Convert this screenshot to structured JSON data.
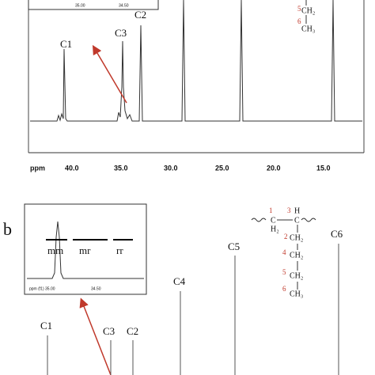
{
  "panel_a": {
    "inset_ticks": [
      "35.00",
      "34.50"
    ],
    "peak_labels": [
      "C1",
      "C3",
      "C2"
    ],
    "x_axis": {
      "unit": "ppm",
      "ticks": [
        "40.0",
        "35.0",
        "30.0",
        "25.0",
        "20.0",
        "15.0"
      ]
    },
    "structure": {
      "numbers": [
        "5",
        "6"
      ],
      "groups": [
        "CH₂",
        "CH₃"
      ]
    }
  },
  "panel_b": {
    "label": "b",
    "inset": {
      "tacticity": [
        "mm",
        "mr",
        "rr"
      ],
      "axis_label": "ppm (f1)",
      "ticks": [
        "35.00",
        "34.50"
      ]
    },
    "peak_labels": [
      "C1",
      "C3",
      "C2",
      "C4",
      "C5",
      "C6"
    ],
    "structure": {
      "numbers": [
        "1",
        "3",
        "2",
        "4",
        "5",
        "6"
      ],
      "top": [
        "C",
        "C",
        "H",
        "H₂"
      ],
      "groups": [
        "CH₂",
        "CH₂",
        "CH₂",
        "CH₃"
      ]
    }
  }
}
